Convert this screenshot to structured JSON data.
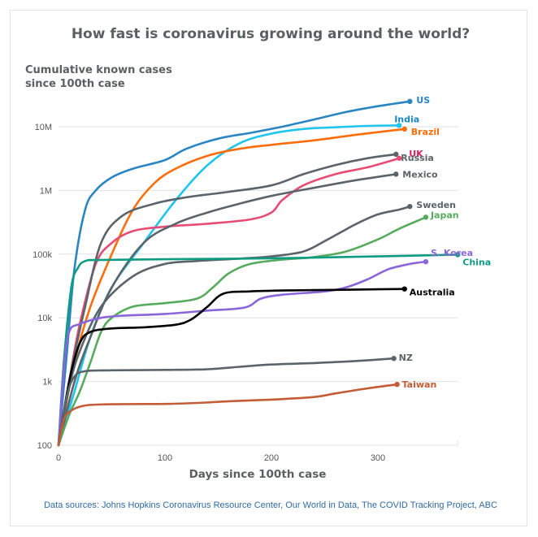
{
  "chart_data": {
    "type": "line",
    "title": "How fast is coronavirus growing around the world?",
    "ylabel_lines": [
      "Cumulative known cases",
      "since 100th case"
    ],
    "xlabel": "Days since 100th case",
    "source": "Data sources: Johns Hopkins Coronavirus Resource Center, Our World in Data, The COVID Tracking Project, ABC",
    "y_scale": "log",
    "ylim": [
      100,
      30000000
    ],
    "xlim": [
      0,
      375
    ],
    "grid": true,
    "x_ticks": [
      0,
      100,
      200,
      300
    ],
    "x_tick_labels": [
      "0",
      "100",
      "200",
      "300"
    ],
    "y_ticks": [
      100,
      1000,
      10000,
      100000,
      1000000,
      10000000
    ],
    "y_tick_labels": [
      "100",
      "1k",
      "10k",
      "100k",
      "1M",
      "10M"
    ],
    "series": [
      {
        "name": "US",
        "label": "US",
        "color": "#2a86c3",
        "points": [
          [
            0,
            100
          ],
          [
            8,
            3000
          ],
          [
            15,
            60000
          ],
          [
            25,
            500000
          ],
          [
            35,
            1000000
          ],
          [
            50,
            1600000
          ],
          [
            70,
            2200000
          ],
          [
            100,
            3000000
          ],
          [
            120,
            4500000
          ],
          [
            150,
            6500000
          ],
          [
            180,
            8000000
          ],
          [
            210,
            10000000
          ],
          [
            240,
            13000000
          ],
          [
            270,
            17000000
          ],
          [
            300,
            21000000
          ],
          [
            330,
            25000000
          ]
        ]
      },
      {
        "name": "India",
        "label": "India",
        "color": "#1ec5ef",
        "points": [
          [
            0,
            100
          ],
          [
            15,
            700
          ],
          [
            30,
            5000
          ],
          [
            50,
            30000
          ],
          [
            80,
            150000
          ],
          [
            110,
            700000
          ],
          [
            140,
            2500000
          ],
          [
            170,
            5500000
          ],
          [
            200,
            7800000
          ],
          [
            230,
            9200000
          ],
          [
            260,
            9800000
          ],
          [
            290,
            10300000
          ],
          [
            320,
            10500000
          ]
        ]
      },
      {
        "name": "Brazil",
        "label": "Brazil",
        "color": "#ff6d0b",
        "points": [
          [
            0,
            100
          ],
          [
            15,
            2000
          ],
          [
            30,
            15000
          ],
          [
            50,
            100000
          ],
          [
            70,
            500000
          ],
          [
            90,
            1300000
          ],
          [
            110,
            2200000
          ],
          [
            140,
            3500000
          ],
          [
            170,
            4500000
          ],
          [
            200,
            5200000
          ],
          [
            240,
            6100000
          ],
          [
            280,
            7500000
          ],
          [
            325,
            9200000
          ]
        ]
      },
      {
        "name": "UK",
        "label": "UK",
        "color": "#e84b73",
        "points": [
          [
            0,
            100
          ],
          [
            10,
            1000
          ],
          [
            20,
            8000
          ],
          [
            35,
            70000
          ],
          [
            50,
            150000
          ],
          [
            70,
            230000
          ],
          [
            100,
            270000
          ],
          [
            140,
            300000
          ],
          [
            180,
            350000
          ],
          [
            200,
            450000
          ],
          [
            210,
            700000
          ],
          [
            230,
            1200000
          ],
          [
            260,
            1800000
          ],
          [
            290,
            2300000
          ],
          [
            320,
            3200000
          ]
        ]
      },
      {
        "name": "Russia",
        "label": "Russia",
        "color": "#5b646b",
        "points": [
          [
            0,
            100
          ],
          [
            12,
            1500
          ],
          [
            25,
            15000
          ],
          [
            40,
            150000
          ],
          [
            60,
            400000
          ],
          [
            90,
            620000
          ],
          [
            120,
            780000
          ],
          [
            160,
            950000
          ],
          [
            200,
            1200000
          ],
          [
            230,
            1800000
          ],
          [
            260,
            2500000
          ],
          [
            290,
            3200000
          ],
          [
            317,
            3700000
          ]
        ]
      },
      {
        "name": "Mexico",
        "label": "Mexico",
        "color": "#5b646b",
        "points": [
          [
            0,
            100
          ],
          [
            15,
            1000
          ],
          [
            30,
            5000
          ],
          [
            50,
            30000
          ],
          [
            80,
            150000
          ],
          [
            110,
            300000
          ],
          [
            140,
            450000
          ],
          [
            170,
            620000
          ],
          [
            200,
            820000
          ],
          [
            240,
            1100000
          ],
          [
            280,
            1450000
          ],
          [
            317,
            1800000
          ]
        ]
      },
      {
        "name": "Sweden",
        "label": "Sweden",
        "color": "#5b646b",
        "points": [
          [
            0,
            100
          ],
          [
            10,
            800
          ],
          [
            20,
            3000
          ],
          [
            40,
            15000
          ],
          [
            70,
            45000
          ],
          [
            100,
            70000
          ],
          [
            130,
            78000
          ],
          [
            170,
            85000
          ],
          [
            200,
            92000
          ],
          [
            230,
            110000
          ],
          [
            250,
            160000
          ],
          [
            265,
            220000
          ],
          [
            280,
            300000
          ],
          [
            300,
            420000
          ],
          [
            320,
            500000
          ],
          [
            330,
            560000
          ]
        ]
      },
      {
        "name": "Japan",
        "label": "Japan",
        "color": "#57ab5e",
        "points": [
          [
            0,
            100
          ],
          [
            10,
            300
          ],
          [
            20,
            700
          ],
          [
            30,
            2000
          ],
          [
            40,
            6000
          ],
          [
            50,
            10000
          ],
          [
            70,
            15000
          ],
          [
            100,
            17000
          ],
          [
            130,
            20000
          ],
          [
            145,
            30000
          ],
          [
            160,
            50000
          ],
          [
            180,
            70000
          ],
          [
            210,
            82000
          ],
          [
            240,
            90000
          ],
          [
            270,
            110000
          ],
          [
            300,
            170000
          ],
          [
            320,
            250000
          ],
          [
            345,
            380000
          ]
        ]
      },
      {
        "name": "China",
        "label": "China",
        "color": "#0e9b82",
        "points": [
          [
            0,
            100
          ],
          [
            5,
            2000
          ],
          [
            12,
            30000
          ],
          [
            18,
            60000
          ],
          [
            25,
            78000
          ],
          [
            40,
            81000
          ],
          [
            100,
            83000
          ],
          [
            200,
            86000
          ],
          [
            300,
            92000
          ],
          [
            375,
            98000
          ]
        ]
      },
      {
        "name": "S. Korea",
        "label": "S. Korea",
        "color": "#8a66d9",
        "points": [
          [
            0,
            100
          ],
          [
            5,
            1500
          ],
          [
            10,
            6000
          ],
          [
            20,
            8000
          ],
          [
            40,
            10000
          ],
          [
            60,
            10800
          ],
          [
            100,
            11500
          ],
          [
            140,
            13000
          ],
          [
            175,
            14500
          ],
          [
            190,
            20000
          ],
          [
            210,
            23000
          ],
          [
            250,
            26000
          ],
          [
            270,
            30000
          ],
          [
            290,
            40000
          ],
          [
            310,
            58000
          ],
          [
            330,
            70000
          ],
          [
            345,
            76000
          ]
        ]
      },
      {
        "name": "Australia",
        "label": "Australia",
        "color": "#000000",
        "points": [
          [
            0,
            100
          ],
          [
            10,
            1000
          ],
          [
            20,
            4000
          ],
          [
            30,
            6000
          ],
          [
            50,
            6800
          ],
          [
            80,
            7100
          ],
          [
            110,
            7800
          ],
          [
            125,
            9500
          ],
          [
            140,
            15000
          ],
          [
            155,
            24000
          ],
          [
            180,
            26000
          ],
          [
            220,
            27000
          ],
          [
            260,
            27500
          ],
          [
            300,
            28000
          ],
          [
            325,
            28400
          ]
        ]
      },
      {
        "name": "NZ",
        "label": "NZ",
        "color": "#5b646b",
        "points": [
          [
            0,
            100
          ],
          [
            8,
            600
          ],
          [
            15,
            1200
          ],
          [
            25,
            1450
          ],
          [
            50,
            1500
          ],
          [
            100,
            1520
          ],
          [
            140,
            1560
          ],
          [
            170,
            1700
          ],
          [
            200,
            1850
          ],
          [
            240,
            1950
          ],
          [
            280,
            2100
          ],
          [
            315,
            2300
          ]
        ]
      },
      {
        "name": "Taiwan",
        "label": "Taiwan",
        "color": "#c45c35",
        "points": [
          [
            0,
            100
          ],
          [
            5,
            250
          ],
          [
            12,
            350
          ],
          [
            25,
            420
          ],
          [
            50,
            440
          ],
          [
            100,
            445
          ],
          [
            130,
            460
          ],
          [
            160,
            490
          ],
          [
            200,
            520
          ],
          [
            240,
            570
          ],
          [
            260,
            650
          ],
          [
            290,
            780
          ],
          [
            318,
            900
          ]
        ]
      }
    ]
  }
}
